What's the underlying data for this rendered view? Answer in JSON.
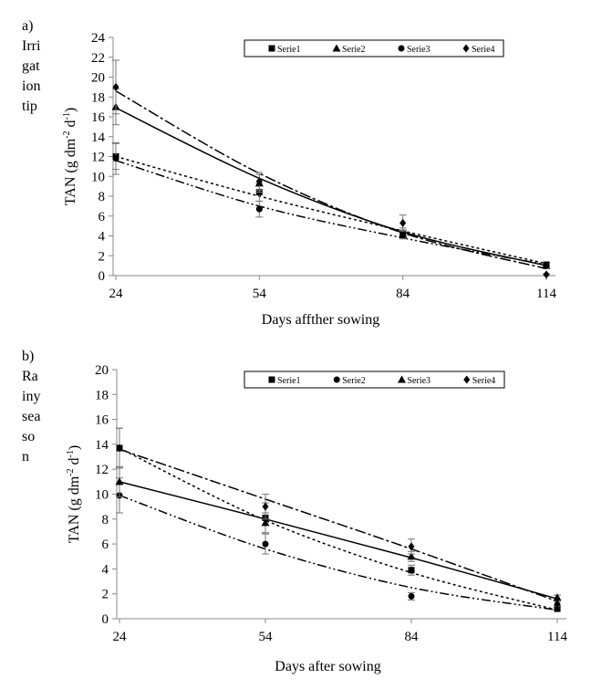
{
  "chart_data": [
    {
      "type": "line",
      "panel_label": "a)",
      "side_text": [
        "Irri",
        "gat",
        "ion",
        "tip"
      ],
      "xlabel": "Days  affther sowing",
      "ylabel_main": "TAN (g dm",
      "ylabel_sup1": "-2",
      "ylabel_mid": " d",
      "ylabel_sup2": "-1",
      "ylabel_end": ")",
      "xlim": [
        24,
        114
      ],
      "ylim": [
        0,
        24
      ],
      "xticks": [
        24,
        54,
        84,
        114
      ],
      "yticks": [
        0,
        2,
        4,
        6,
        8,
        10,
        12,
        14,
        16,
        18,
        20,
        22,
        24
      ],
      "grid": false,
      "legend_position": "top",
      "series": [
        {
          "name": "Serie1",
          "marker": "square",
          "x": [
            24,
            54,
            84,
            114
          ],
          "y": [
            12.0,
            8.4,
            4.3,
            1.1
          ],
          "err": [
            1.3,
            0.9,
            0.5,
            0.2
          ],
          "fit": [
            12.0,
            8.0,
            4.5,
            1.2
          ],
          "dash": "3,3"
        },
        {
          "name": "Serie2",
          "marker": "triangle",
          "x": [
            24,
            54,
            84,
            114
          ],
          "y": [
            17.0,
            9.3,
            4.2,
            1.0
          ],
          "err": [
            1.8,
            0.9,
            0.4,
            0.2
          ],
          "fit": [
            16.9,
            9.8,
            4.4,
            1.0
          ],
          "dash": ""
        },
        {
          "name": "Serie3",
          "marker": "circle",
          "x": [
            24,
            54,
            84,
            114
          ],
          "y": [
            11.8,
            6.7,
            4.1,
            1.0
          ],
          "err": [
            1.6,
            0.8,
            0.4,
            0.2
          ],
          "fit": [
            11.6,
            7.0,
            3.8,
            1.1
          ],
          "dash": "10,3,2,3,2,3"
        },
        {
          "name": "Serie4",
          "marker": "diamond",
          "x": [
            24,
            54,
            84,
            114
          ],
          "y": [
            19.0,
            9.5,
            5.3,
            0.1
          ],
          "err": [
            2.7,
            0.9,
            0.8,
            0.1
          ],
          "fit": [
            18.6,
            10.3,
            4.3,
            0.7
          ],
          "dash": "12,3,3,3"
        }
      ]
    },
    {
      "type": "line",
      "panel_label": "b)",
      "side_text": [
        "Ra",
        "iny",
        "sea",
        "so",
        "n"
      ],
      "xlabel": "Days after sowing",
      "ylabel_main": "TAN (g dm",
      "ylabel_sup1": "-2",
      "ylabel_mid": " d",
      "ylabel_sup2": "-1",
      "ylabel_end": ")",
      "xlim": [
        24,
        114
      ],
      "ylim": [
        0,
        20
      ],
      "xticks": [
        24,
        54,
        84,
        114
      ],
      "yticks": [
        0,
        2,
        4,
        6,
        8,
        10,
        12,
        14,
        16,
        18,
        20
      ],
      "grid": false,
      "legend_position": "top",
      "series": [
        {
          "name": "Serie1",
          "marker": "square",
          "x": [
            24,
            54,
            84,
            114
          ],
          "y": [
            13.7,
            8.1,
            3.9,
            0.8
          ],
          "err": [
            1.6,
            1.2,
            0.4,
            0.1
          ],
          "fit": [
            13.7,
            7.9,
            3.7,
            0.7
          ],
          "dash": "3,3"
        },
        {
          "name": "Serie2",
          "marker": "circle",
          "x": [
            24,
            54,
            84,
            114
          ],
          "y": [
            9.9,
            6.0,
            1.8,
            1.0
          ],
          "err": [
            1.4,
            0.8,
            0.3,
            0.1
          ],
          "fit": [
            9.9,
            5.6,
            2.5,
            0.7
          ],
          "dash": "10,3,2,3,2,3"
        },
        {
          "name": "Serie3",
          "marker": "triangle",
          "x": [
            24,
            54,
            84,
            114
          ],
          "y": [
            11.0,
            7.7,
            5.0,
            1.7
          ],
          "err": [
            1.2,
            0.8,
            0.4,
            0.2
          ],
          "fit": [
            11.0,
            8.0,
            4.9,
            1.6
          ],
          "dash": ""
        },
        {
          "name": "Serie4",
          "marker": "diamond",
          "x": [
            24,
            54,
            84,
            114
          ],
          "y": [
            13.7,
            9.0,
            5.8,
            1.2
          ],
          "err": [
            1.6,
            1.0,
            0.6,
            0.2
          ],
          "fit": [
            13.6,
            9.6,
            5.6,
            1.4
          ],
          "dash": "12,3,3,3"
        }
      ]
    }
  ]
}
